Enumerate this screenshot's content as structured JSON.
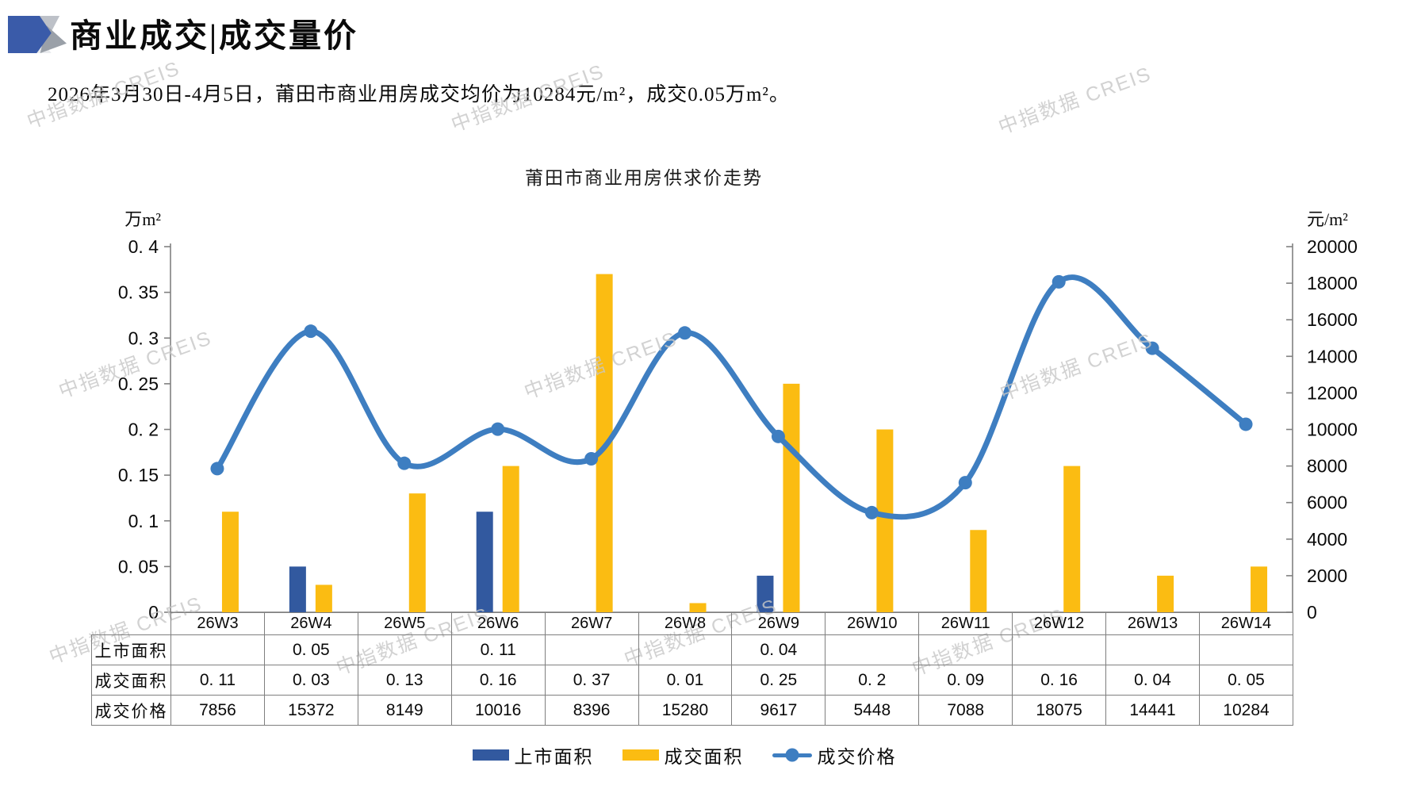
{
  "header": {
    "title": "商业成交|成交量价"
  },
  "subtitle": "2026年3月30日-4月5日，莆田市商业用房成交均价为10284元/m²，成交0.05万m²。",
  "watermark": {
    "text": "中指数据 CREIS"
  },
  "chart_data": {
    "type": "combo",
    "title": "莆田市商业用房供求价走势",
    "categories": [
      "26W3",
      "26W4",
      "26W5",
      "26W6",
      "26W7",
      "26W8",
      "26W9",
      "26W10",
      "26W11",
      "26W12",
      "26W13",
      "26W14"
    ],
    "series": [
      {
        "key": "listed-area",
        "name": "上市面积",
        "type": "bar",
        "axis": "left",
        "color": "#32599f",
        "values": [
          null,
          0.05,
          null,
          0.11,
          null,
          null,
          0.04,
          null,
          null,
          null,
          null,
          null
        ]
      },
      {
        "key": "sold-area",
        "name": "成交面积",
        "type": "bar",
        "axis": "left",
        "color": "#fbbc12",
        "values": [
          0.11,
          0.03,
          0.13,
          0.16,
          0.37,
          0.01,
          0.25,
          0.2,
          0.09,
          0.16,
          0.04,
          0.05
        ]
      },
      {
        "key": "avg-price",
        "name": "成交价格",
        "type": "line",
        "axis": "right",
        "color": "#3e7ec1",
        "values": [
          7856,
          15372,
          8149,
          10016,
          8396,
          15280,
          9617,
          5448,
          7088,
          18075,
          14441,
          10284
        ]
      }
    ],
    "left_axis": {
      "unit": "万m²",
      "min": 0,
      "max": 0.4,
      "step": 0.05,
      "ticks": [
        "0",
        "0.05",
        "0.1",
        "0.15",
        "0.2",
        "0.25",
        "0.3",
        "0.35",
        "0.4"
      ]
    },
    "right_axis": {
      "unit": "元/m²",
      "min": 0,
      "max": 20000,
      "step": 2000,
      "ticks": [
        "0",
        "2000",
        "4000",
        "6000",
        "8000",
        "10000",
        "12000",
        "14000",
        "16000",
        "18000",
        "20000"
      ]
    },
    "grid": "off",
    "legend_position": "bottom"
  },
  "table": {
    "rows": [
      {
        "label": "上市面积",
        "cells": [
          "",
          "0.05",
          "",
          "0.11",
          "",
          "",
          "0.04",
          "",
          "",
          "",
          "",
          ""
        ]
      },
      {
        "label": "成交面积",
        "cells": [
          "0.11",
          "0.03",
          "0.13",
          "0.16",
          "0.37",
          "0.01",
          "0.25",
          "0.2",
          "0.09",
          "0.16",
          "0.04",
          "0.05"
        ]
      },
      {
        "label": "成交价格",
        "cells": [
          "7856",
          "15372",
          "8149",
          "10016",
          "8396",
          "15280",
          "9617",
          "5448",
          "7088",
          "18075",
          "14441",
          "10284"
        ]
      }
    ]
  }
}
